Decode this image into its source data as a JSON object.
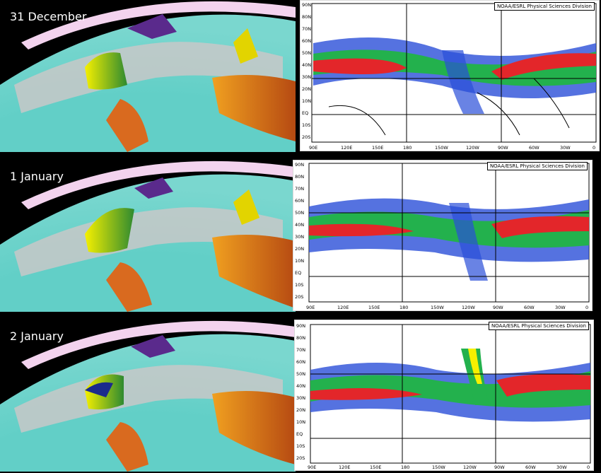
{
  "panels": [
    {
      "date": "31 December"
    },
    {
      "date": "1 January"
    },
    {
      "date": "2 January"
    }
  ],
  "map": {
    "credit": "NOAA/ESRL Physical Sciences Division",
    "lat_labels": [
      "90N",
      "80N",
      "70N",
      "60N",
      "50N",
      "40N",
      "30N",
      "20N",
      "10N",
      "EQ",
      "10S",
      "20S"
    ],
    "lon_labels": [
      "90E",
      "120E",
      "150E",
      "180",
      "150W",
      "120W",
      "90W",
      "60W",
      "30W",
      "0"
    ]
  },
  "colors": {
    "ocean": "#5ccdc5",
    "cloud": "#c9c9c9",
    "land_warm": "#d2691e",
    "jet_core": "#e3262a",
    "jet_mid": "#23b14d",
    "jet_low": "#2a4fd8"
  }
}
